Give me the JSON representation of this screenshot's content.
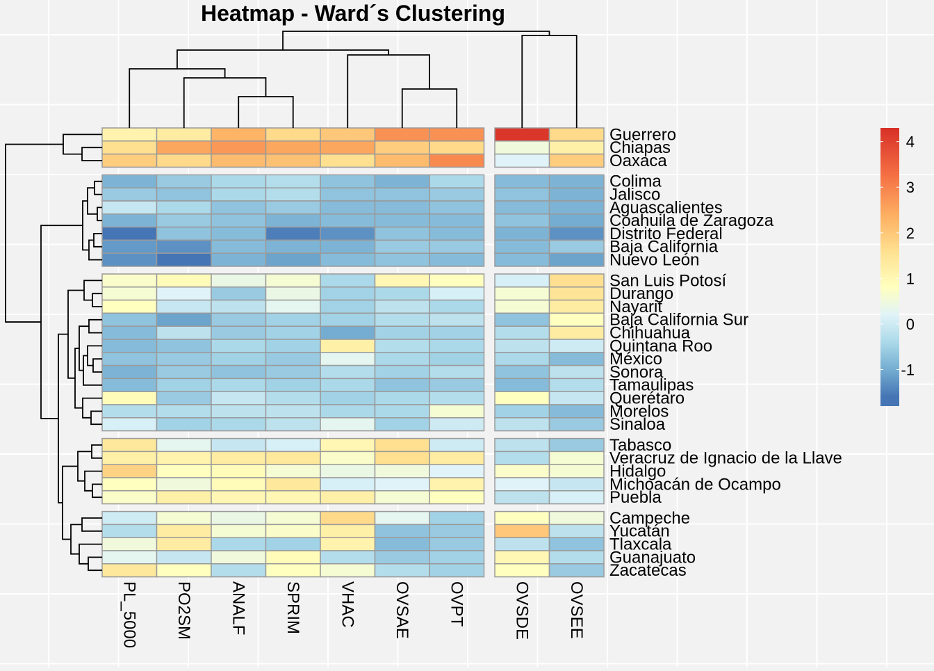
{
  "chart_data": {
    "type": "heatmap",
    "title": "Heatmap - Ward´s Clustering",
    "columns": [
      "PL_5000",
      "PO2SM",
      "ANALF",
      "SPRIM",
      "VHAC",
      "OVSAE",
      "OVPT",
      "OVSDE",
      "OVSEE"
    ],
    "column_groups": [
      [
        "PL_5000",
        "PO2SM",
        "ANALF",
        "SPRIM",
        "VHAC",
        "OVSAE",
        "OVPT"
      ],
      [
        "OVSDE",
        "OVSEE"
      ]
    ],
    "row_groups": [
      {
        "rows": [
          {
            "name": "Guerrero",
            "values": [
              1.1,
              1.3,
              2.3,
              1.7,
              2.0,
              2.8,
              2.8,
              4.2,
              1.7
            ]
          },
          {
            "name": "Chiapas",
            "values": [
              1.6,
              2.5,
              2.7,
              2.5,
              2.5,
              1.9,
              1.7,
              0.5,
              1.2
            ]
          },
          {
            "name": "Oaxaca",
            "values": [
              1.9,
              1.7,
              2.2,
              2.1,
              1.6,
              2.2,
              2.9,
              0.2,
              1.9
            ]
          }
        ]
      },
      {
        "rows": [
          {
            "name": "Colima",
            "values": [
              -0.9,
              -0.6,
              -0.4,
              -0.3,
              -0.7,
              -0.9,
              -0.4,
              -0.8,
              -0.9
            ]
          },
          {
            "name": "Jalisco",
            "values": [
              -0.6,
              -0.7,
              -0.4,
              -0.3,
              -0.7,
              -0.7,
              -0.6,
              -0.7,
              -0.9
            ]
          },
          {
            "name": "Aguascalientes",
            "values": [
              -0.1,
              -0.4,
              -0.7,
              -0.6,
              -0.8,
              -0.8,
              -0.7,
              -0.8,
              -0.9
            ]
          },
          {
            "name": "Coahuila de Zaragoza",
            "values": [
              -0.9,
              -0.6,
              -0.7,
              -0.9,
              -0.8,
              -0.8,
              -0.8,
              -0.7,
              -1.0
            ]
          },
          {
            "name": "Distrito Federal",
            "values": [
              -1.6,
              -0.7,
              -0.8,
              -1.5,
              -1.3,
              -0.7,
              -0.8,
              -0.9,
              -1.3
            ]
          },
          {
            "name": "Baja California",
            "values": [
              -1.2,
              -1.3,
              -0.8,
              -0.9,
              -0.9,
              -0.6,
              -0.6,
              -0.8,
              -0.6
            ]
          },
          {
            "name": "Nuevo León",
            "values": [
              -1.3,
              -1.7,
              -0.9,
              -1.1,
              -0.8,
              -0.7,
              -0.8,
              -0.8,
              -1.1
            ]
          }
        ]
      },
      {
        "rows": [
          {
            "name": "San Luis Potosí",
            "values": [
              0.7,
              0.9,
              0.4,
              0.6,
              -0.4,
              1.0,
              0.8,
              0.1,
              1.6
            ]
          },
          {
            "name": "Durango",
            "values": [
              0.6,
              0.2,
              -0.6,
              0.4,
              -0.5,
              -0.4,
              0.1,
              0.6,
              1.5
            ]
          },
          {
            "name": "Nayarit",
            "values": [
              0.8,
              -0.1,
              -0.2,
              0.3,
              -0.5,
              -0.2,
              -0.4,
              0.6,
              1.3
            ]
          },
          {
            "name": "Baja California Sur",
            "values": [
              -0.7,
              -1.1,
              -0.6,
              -0.5,
              -0.5,
              -0.3,
              -0.2,
              -0.7,
              0.8
            ]
          },
          {
            "name": "Chihuahua",
            "values": [
              -0.8,
              -0.2,
              -0.6,
              -0.5,
              -1.0,
              -0.5,
              -0.5,
              -0.3,
              1.3
            ]
          },
          {
            "name": "Quintana Roo",
            "values": [
              -0.8,
              -0.7,
              -0.4,
              -0.5,
              1.2,
              -0.3,
              -0.4,
              -0.2,
              0.0
            ]
          },
          {
            "name": "México",
            "values": [
              -0.7,
              -0.6,
              -0.5,
              -0.6,
              0.3,
              -0.4,
              -0.5,
              -0.4,
              -0.8
            ]
          },
          {
            "name": "Sonora",
            "values": [
              -0.9,
              -0.6,
              -0.7,
              -0.6,
              -0.3,
              -0.5,
              -0.3,
              -0.7,
              -0.2
            ]
          },
          {
            "name": "Tamaulipas",
            "values": [
              -0.8,
              -0.5,
              -0.4,
              -0.5,
              -0.4,
              -0.7,
              -0.6,
              -0.8,
              -0.3
            ]
          },
          {
            "name": "Querétaro",
            "values": [
              0.9,
              -0.6,
              -0.1,
              -0.3,
              -0.5,
              -0.4,
              -0.3,
              0.8,
              -0.1
            ]
          },
          {
            "name": "Morelos",
            "values": [
              -0.3,
              -0.3,
              -0.2,
              -0.2,
              -0.4,
              -0.4,
              0.6,
              -0.5,
              -0.8
            ]
          },
          {
            "name": "Sinaloa",
            "values": [
              0.1,
              -0.5,
              -0.4,
              -0.2,
              0.3,
              -0.5,
              0.0,
              -0.2,
              -0.6
            ]
          }
        ]
      },
      {
        "rows": [
          {
            "name": "Tabasco",
            "values": [
              1.4,
              0.3,
              -0.1,
              0.1,
              1.0,
              1.6,
              0.0,
              -0.2,
              -0.6
            ]
          },
          {
            "name": "Veracruz de Ignacio de la Llave",
            "values": [
              1.2,
              1.1,
              1.3,
              1.4,
              0.7,
              1.6,
              1.3,
              -0.3,
              0.6
            ]
          },
          {
            "name": "Hidalgo",
            "values": [
              1.8,
              0.8,
              0.9,
              0.6,
              0.4,
              0.5,
              0.2,
              0.7,
              0.6
            ]
          },
          {
            "name": "Michoacán de Ocampo",
            "values": [
              0.8,
              0.5,
              0.9,
              1.4,
              0.1,
              0.2,
              1.1,
              0.2,
              -0.1
            ]
          },
          {
            "name": "Puebla",
            "values": [
              0.7,
              1.2,
              1.0,
              1.0,
              1.2,
              0.6,
              0.8,
              -0.2,
              0.1
            ]
          }
        ]
      },
      {
        "rows": [
          {
            "name": "Campeche",
            "values": [
              0.0,
              0.6,
              0.4,
              0.6,
              1.7,
              0.3,
              -0.5,
              0.8,
              0.5
            ]
          },
          {
            "name": "Yucatán",
            "values": [
              -0.3,
              1.3,
              0.6,
              0.7,
              1.2,
              -0.7,
              -0.6,
              2.0,
              -0.2
            ]
          },
          {
            "name": "Tlaxcala",
            "values": [
              0.5,
              1.3,
              -0.4,
              -0.5,
              1.1,
              -0.8,
              -0.6,
              -0.2,
              -0.7
            ]
          },
          {
            "name": "Guanajuato",
            "values": [
              0.3,
              -0.1,
              0.5,
              0.9,
              -0.3,
              -0.6,
              -0.5,
              1.0,
              -0.3
            ]
          },
          {
            "name": "Zacatecas",
            "values": [
              1.4,
              0.8,
              -0.3,
              0.8,
              0.6,
              -0.3,
              -0.5,
              0.8,
              -0.6
            ]
          }
        ]
      }
    ],
    "color_scale": {
      "stops": [
        {
          "value": -1.6,
          "color": "#4575b4"
        },
        {
          "value": -1.0,
          "color": "#74add1"
        },
        {
          "value": -0.4,
          "color": "#abd9e9"
        },
        {
          "value": 0.2,
          "color": "#e0f3f8"
        },
        {
          "value": 0.8,
          "color": "#ffffbf"
        },
        {
          "value": 1.6,
          "color": "#fee090"
        },
        {
          "value": 2.4,
          "color": "#fdae61"
        },
        {
          "value": 3.3,
          "color": "#f46d43"
        },
        {
          "value": 4.3,
          "color": "#d73027"
        }
      ],
      "min": -1.8,
      "max": 4.3,
      "ticks": [
        4,
        3,
        2,
        1,
        0,
        -1
      ]
    },
    "legend_position": "right",
    "grid": true
  }
}
